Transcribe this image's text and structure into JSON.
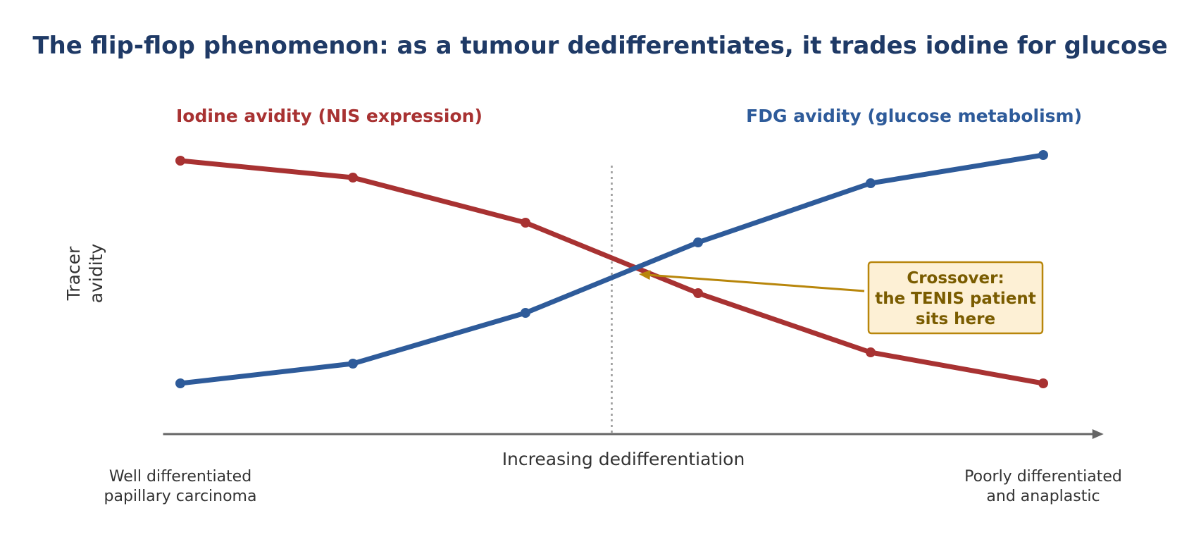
{
  "chart_data": {
    "type": "line",
    "title": "The flip-flop phenomenon: as a tumour dedifferentiates, it trades iodine for glucose",
    "xlabel": "Increasing dedifferentiation",
    "ylabel": "Tracer avidity",
    "x": [
      0,
      1,
      2,
      3,
      4,
      5
    ],
    "xlim": [
      -0.1,
      5.35
    ],
    "ylim": [
      0,
      1
    ],
    "x_tick_labels": [
      {
        "x": 0,
        "lines": [
          "Well differentiated",
          "papillary carcinoma"
        ]
      },
      {
        "x": 5,
        "lines": [
          "Poorly differentiated",
          "and anaplastic"
        ]
      }
    ],
    "series": [
      {
        "name": "Iodine avidity (NIS expression)",
        "color": "#a83232",
        "values": [
          0.93,
          0.87,
          0.71,
          0.46,
          0.25,
          0.14
        ]
      },
      {
        "name": "FDG avidity (glucose metabolism)",
        "color": "#2e5b9a",
        "values": [
          0.14,
          0.21,
          0.39,
          0.64,
          0.85,
          0.95
        ]
      }
    ],
    "crossover_x": 2.5,
    "annotation": {
      "lines": [
        "Crossover:",
        "the TENIS patient",
        "sits here"
      ],
      "text_color": "#7a5c00",
      "box_fill": "#fdf0d5",
      "border_color": "#b8860b"
    },
    "title_color": "#1f3a66",
    "axis_color": "#666666",
    "grid": false
  }
}
